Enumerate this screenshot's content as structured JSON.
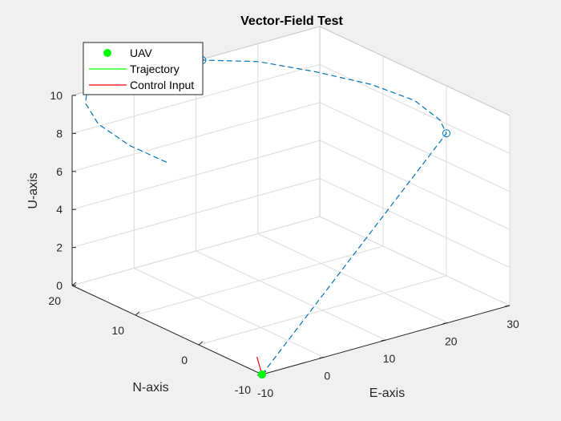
{
  "chart_data": {
    "type": "line3d",
    "title": "Vector-Field Test",
    "xlabel": "E-axis",
    "ylabel": "N-axis",
    "zlabel": "U-axis",
    "xlim": [
      -10,
      30
    ],
    "ylim": [
      -10,
      20
    ],
    "zlim": [
      0,
      10
    ],
    "xticks": [
      "-10",
      "0",
      "10",
      "20",
      "30"
    ],
    "yticks": [
      "-10",
      "0",
      "10",
      "20"
    ],
    "zticks": [
      "0",
      "2",
      "4",
      "6",
      "8",
      "10"
    ],
    "grid": true,
    "legend": {
      "placement": "top-left",
      "entries": [
        {
          "label": "UAV",
          "color": "#00ff00",
          "marker": "filled-circle"
        },
        {
          "label": "Trajectory",
          "color": "#00ff00",
          "marker": "line"
        },
        {
          "label": "Control Input",
          "color": "#ff0000",
          "marker": "line"
        }
      ]
    },
    "series": [
      {
        "style": "dashed",
        "color": "#0072bd",
        "points": [
          [
            -10,
            -10,
            0
          ],
          [
            -2,
            -8,
            1.5
          ],
          [
            6,
            -6,
            3
          ],
          [
            14,
            -4,
            4.5
          ],
          [
            22,
            -2,
            6
          ],
          [
            30,
            0,
            7.5
          ],
          [
            31,
            2,
            7.8
          ],
          [
            31,
            6,
            8.2
          ],
          [
            28,
            10,
            8.7
          ],
          [
            23,
            14,
            9.2
          ],
          [
            17,
            17,
            9.8
          ],
          [
            10,
            19,
            10.2
          ],
          [
            3,
            20,
            10.6
          ],
          [
            -4,
            19.5,
            10.8
          ],
          [
            -10,
            17.5,
            10.9
          ],
          [
            -14,
            14,
            10.9
          ],
          [
            -16,
            10,
            10.6
          ],
          [
            -15,
            6,
            10.0
          ],
          [
            -12,
            3,
            9.3
          ]
        ]
      }
    ],
    "waypoints": [
      [
        -10,
        -10,
        0
      ],
      [
        30,
        0,
        7.5
      ],
      [
        10,
        19,
        10.2
      ]
    ],
    "uav_position": [
      -10,
      -10,
      0
    ],
    "control_input": [
      -9.2,
      -8.4,
      0.6
    ]
  }
}
